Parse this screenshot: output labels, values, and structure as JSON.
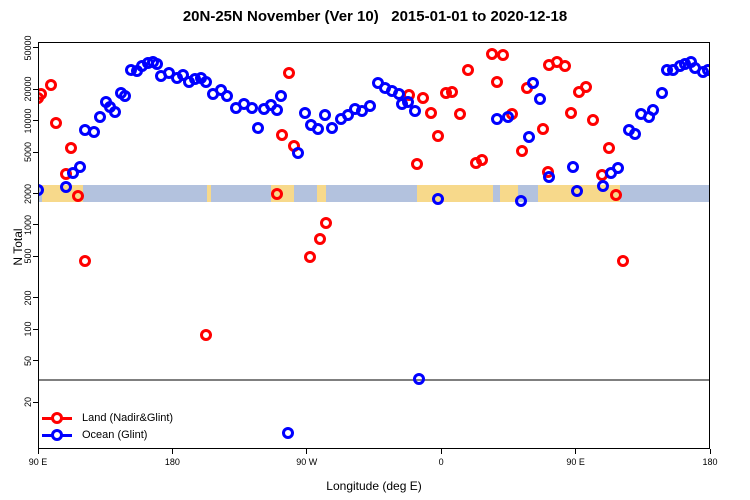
{
  "title": "20N-25N November (Ver 10)   2015-01-01 to 2020-12-18",
  "chart_data": {
    "type": "scatter",
    "title": "20N-25N November (Ver 10)   2015-01-01 to 2020-12-18",
    "xlabel": "Longitude (deg E)",
    "ylabel": "N Total",
    "y_scale": "log",
    "ylim": [
      6,
      57000
    ],
    "x_range_deg": [
      90,
      540
    ],
    "x_ticks": [
      {
        "deg": 90,
        "label": "90 E"
      },
      {
        "deg": 180,
        "label": "180"
      },
      {
        "deg": 270,
        "label": "90 W"
      },
      {
        "deg": 360,
        "label": "0"
      },
      {
        "deg": 450,
        "label": "90 E"
      },
      {
        "deg": 540,
        "label": "180"
      }
    ],
    "y_ticks": [
      20,
      50,
      100,
      200,
      500,
      1000,
      2000,
      5000,
      10000,
      20000,
      50000
    ],
    "grid": "off",
    "legend_position": "bottom-left",
    "threshold_line": {
      "value": 33,
      "color": "#7f7f7f"
    },
    "map_band": {
      "value_top": 2400,
      "value_bottom": 1650,
      "ocean_color": "#b3c2de",
      "land_color": "#f7d98b",
      "segments": [
        {
          "from": 90,
          "to": 93,
          "type": "ocean"
        },
        {
          "from": 93,
          "to": 120,
          "type": "land"
        },
        {
          "from": 120,
          "to": 203,
          "type": "ocean"
        },
        {
          "from": 203,
          "to": 206,
          "type": "land"
        },
        {
          "from": 206,
          "to": 246,
          "type": "ocean"
        },
        {
          "from": 246,
          "to": 261.5,
          "type": "land"
        },
        {
          "from": 261.5,
          "to": 277,
          "type": "ocean"
        },
        {
          "from": 277,
          "to": 283,
          "type": "land"
        },
        {
          "from": 283,
          "to": 344,
          "type": "ocean"
        },
        {
          "from": 344,
          "to": 395,
          "type": "land"
        },
        {
          "from": 395,
          "to": 399.5,
          "type": "ocean"
        },
        {
          "from": 399.5,
          "to": 411.5,
          "type": "land"
        },
        {
          "from": 411.5,
          "to": 425,
          "type": "ocean"
        },
        {
          "from": 425,
          "to": 480,
          "type": "land"
        },
        {
          "from": 480,
          "to": 540,
          "type": "ocean"
        }
      ]
    },
    "series": [
      {
        "name": "Land (Nadir&Glint)",
        "color": "#ff0000",
        "points": [
          [
            90.3,
            16500
          ],
          [
            92,
            18000
          ],
          [
            98.7,
            22000
          ],
          [
            102,
            9500
          ],
          [
            108.7,
            3100
          ],
          [
            112,
            5500
          ],
          [
            116.8,
            1900
          ],
          [
            121.5,
            450
          ],
          [
            202.5,
            88
          ],
          [
            250,
            1980
          ],
          [
            253.5,
            7300
          ],
          [
            258,
            29000
          ],
          [
            261.5,
            5700
          ],
          [
            272,
            490
          ],
          [
            279,
            730
          ],
          [
            283,
            1050
          ],
          [
            338.4,
            17600
          ],
          [
            343.8,
            3850
          ],
          [
            347.8,
            16500
          ],
          [
            353,
            12000
          ],
          [
            357.9,
            7100
          ],
          [
            363,
            18500
          ],
          [
            367,
            19000
          ],
          [
            372.5,
            11600
          ],
          [
            378,
            31000
          ],
          [
            383.3,
            3950
          ],
          [
            387.3,
            4200
          ],
          [
            394,
            44000
          ],
          [
            397.3,
            23500
          ],
          [
            401.4,
            43000
          ],
          [
            407.4,
            11700
          ],
          [
            414,
            5100
          ],
          [
            417.4,
            20600
          ],
          [
            428.2,
            8300
          ],
          [
            431.5,
            3200
          ],
          [
            432.2,
            34300
          ],
          [
            437.5,
            36600
          ],
          [
            443,
            33500
          ],
          [
            447,
            12000
          ],
          [
            452,
            18800
          ],
          [
            457,
            21000
          ],
          [
            461.5,
            10200
          ],
          [
            467.7,
            3000
          ],
          [
            472.3,
            5500
          ],
          [
            477,
            1940
          ],
          [
            481.7,
            450
          ]
        ]
      },
      {
        "name": "Ocean (Glint)",
        "color": "#0000ff",
        "points": [
          [
            90,
            2150
          ],
          [
            108.7,
            2300
          ],
          [
            113.4,
            3150
          ],
          [
            118,
            3600
          ],
          [
            121.5,
            8150
          ],
          [
            127.5,
            7800
          ],
          [
            131.5,
            10900
          ],
          [
            135.5,
            15000
          ],
          [
            138,
            13600
          ],
          [
            141.5,
            12100
          ],
          [
            145.5,
            18500
          ],
          [
            148.3,
            17300
          ],
          [
            152.3,
            30500
          ],
          [
            156.3,
            30000
          ],
          [
            159.6,
            33500
          ],
          [
            163.7,
            35500
          ],
          [
            167,
            37000
          ],
          [
            169.7,
            34800
          ],
          [
            172.7,
            26700
          ],
          [
            177.7,
            28700
          ],
          [
            183,
            26000
          ],
          [
            187,
            27300
          ],
          [
            191,
            23500
          ],
          [
            195,
            25300
          ],
          [
            199,
            25900
          ],
          [
            202.5,
            23500
          ],
          [
            207,
            18000
          ],
          [
            212.5,
            19800
          ],
          [
            216.5,
            17300
          ],
          [
            222.5,
            13200
          ],
          [
            228,
            14600
          ],
          [
            233,
            13200
          ],
          [
            237.3,
            8500
          ],
          [
            241.3,
            13000
          ],
          [
            246,
            14300
          ],
          [
            250,
            12700
          ],
          [
            252.7,
            17300
          ],
          [
            257.4,
            10
          ],
          [
            264,
            4900
          ],
          [
            268.8,
            11900
          ],
          [
            272.8,
            9100
          ],
          [
            277.5,
            8300
          ],
          [
            282,
            11400
          ],
          [
            286.8,
            8500
          ],
          [
            293,
            10400
          ],
          [
            297.5,
            11400
          ],
          [
            302.3,
            13000
          ],
          [
            307,
            12400
          ],
          [
            312.3,
            14000
          ],
          [
            317.7,
            23000
          ],
          [
            322.4,
            20800
          ],
          [
            327,
            19500
          ],
          [
            331.7,
            18000
          ],
          [
            333.7,
            14400
          ],
          [
            337.7,
            15000
          ],
          [
            342.5,
            12400
          ],
          [
            345,
            33
          ],
          [
            357.9,
            1770
          ],
          [
            397.3,
            10400
          ],
          [
            404.7,
            10900
          ],
          [
            413.4,
            1700
          ],
          [
            418.8,
            7000
          ],
          [
            421.5,
            23000
          ],
          [
            426,
            16000
          ],
          [
            432,
            2900
          ],
          [
            448,
            3600
          ],
          [
            451,
            2100
          ],
          [
            468.4,
            2370
          ],
          [
            473.7,
            3150
          ],
          [
            478.4,
            3500
          ],
          [
            485.8,
            8150
          ],
          [
            489.8,
            7450
          ],
          [
            493.8,
            11600
          ],
          [
            499,
            10900
          ],
          [
            502,
            12700
          ],
          [
            508,
            18500
          ],
          [
            511.3,
            30500
          ],
          [
            515.3,
            31000
          ],
          [
            520,
            33500
          ],
          [
            523.3,
            35000
          ],
          [
            527.4,
            36500
          ],
          [
            530,
            32000
          ],
          [
            535.4,
            29400
          ],
          [
            538.7,
            30500
          ]
        ]
      }
    ],
    "legend": {
      "items": [
        "Land (Nadir&Glint)",
        "Ocean (Glint)"
      ]
    }
  }
}
